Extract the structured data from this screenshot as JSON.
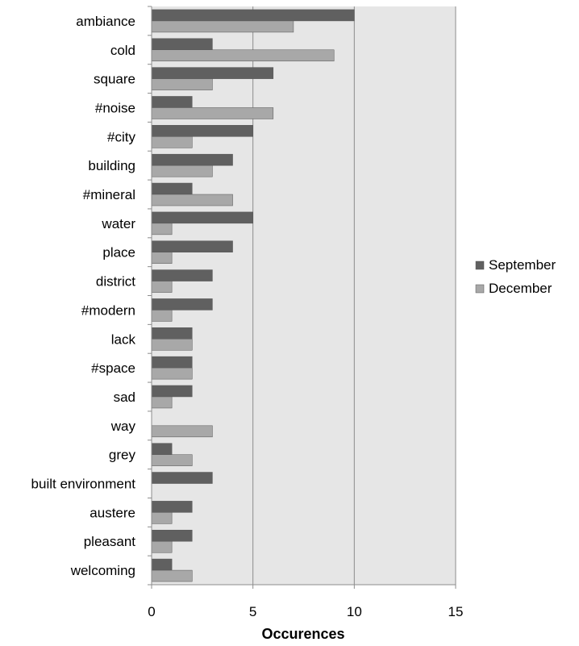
{
  "chart_data": {
    "type": "bar",
    "orientation": "horizontal",
    "title": "",
    "xlabel": "Occurences",
    "ylabel": "",
    "xlim": [
      0,
      15
    ],
    "xticks": [
      0,
      5,
      10,
      15
    ],
    "grid": true,
    "legend_position": "right",
    "categories": [
      "ambiance",
      "cold",
      "square",
      "#noise",
      "#city",
      "building",
      "#mineral",
      "water",
      "place",
      "district",
      "#modern",
      "lack",
      "#space",
      "sad",
      "way",
      "grey",
      "built environment",
      "austere",
      "pleasant",
      "welcoming"
    ],
    "series": [
      {
        "name": "September",
        "color": "#606060",
        "values": [
          10,
          3,
          6,
          2,
          5,
          4,
          2,
          5,
          4,
          3,
          3,
          2,
          2,
          2,
          0,
          1,
          3,
          2,
          2,
          1
        ]
      },
      {
        "name": "December",
        "color": "#a8a8a8",
        "values": [
          7,
          9,
          3,
          6,
          2,
          3,
          4,
          1,
          1,
          1,
          1,
          2,
          2,
          1,
          3,
          2,
          0,
          1,
          1,
          2
        ]
      }
    ],
    "colors": {
      "plot_background": "#e6e6e6",
      "gridline": "#8c8c8c",
      "axis": "#8c8c8c",
      "text": "#000000"
    }
  }
}
